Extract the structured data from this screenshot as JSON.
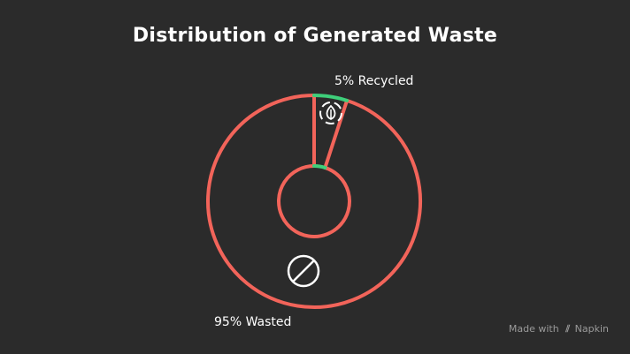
{
  "title": "Distribution of Generated Waste",
  "chart_data": {
    "type": "pie",
    "style": "donut",
    "title": "Distribution of Generated Waste",
    "slices": [
      {
        "label": "5% Recycled",
        "value": 5,
        "color": "#3ecf7a",
        "icon": "recycle-leaf-icon"
      },
      {
        "label": "95% Wasted",
        "value": 95,
        "color": "#f2645a",
        "icon": "prohibited-icon"
      }
    ],
    "legend": "none"
  },
  "watermark": {
    "prefix": "Made with",
    "brand": "Napkin",
    "logo_icon": "napkin-logo-icon"
  }
}
